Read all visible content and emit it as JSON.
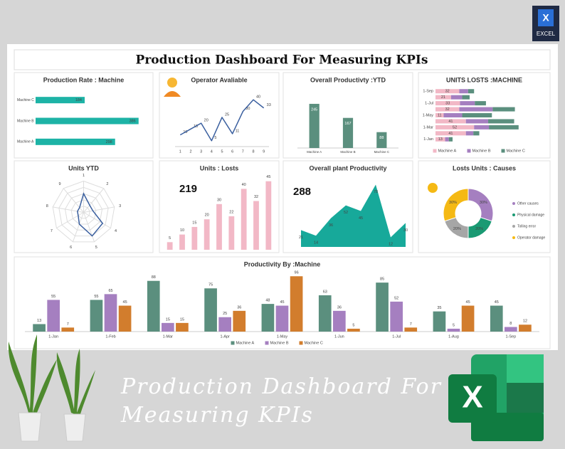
{
  "badge": {
    "letter": "X",
    "label": "EXCEL"
  },
  "dashboard_title": "Production Dashboard For Measuring KPIs",
  "chart_data": [
    {
      "type": "bar",
      "orientation": "horizontal",
      "title": "Production Rate : Machine",
      "categories": [
        "Machine C",
        "Machine B",
        "Machine A"
      ],
      "values": [
        184,
        386,
        298
      ],
      "color": "#1db3a6",
      "xlim": [
        0,
        400
      ]
    },
    {
      "type": "line",
      "title": "Operator Avaliable",
      "x": [
        1,
        2,
        3,
        4,
        5,
        6,
        7,
        8,
        9
      ],
      "values": [
        10,
        15,
        20,
        5,
        25,
        11,
        30,
        40,
        33
      ],
      "color": "#3a5f9f",
      "xlim": [
        0.5,
        9.5
      ],
      "ylim": [
        0,
        45
      ],
      "xticks": [
        1,
        2,
        3,
        4,
        5,
        6,
        7,
        8,
        9
      ]
    },
    {
      "type": "bar",
      "title": "Overall Productivty :YTD",
      "categories": [
        "Machine A",
        "Machine B",
        "Machine C"
      ],
      "values": [
        245,
        167,
        88
      ],
      "color": "#5b8f7e",
      "ylim": [
        0,
        300
      ]
    },
    {
      "type": "bar",
      "orientation": "horizontal",
      "stacked": true,
      "title": "UNITS LOSTS :MACHINE",
      "categories": [
        "1-Sep",
        null,
        "1-Jul",
        null,
        "1-May",
        null,
        "1-Mar",
        null,
        "1-Jan"
      ],
      "series": [
        {
          "name": "Machine A",
          "color": "#f2b8c6",
          "values": [
            32,
            21,
            33,
            32,
            11,
            41,
            52,
            41,
            13
          ]
        },
        {
          "name": "Machine B",
          "color": "#a57fc0",
          "values": [
            12,
            15,
            20,
            45,
            25,
            30,
            20,
            10,
            5
          ]
        },
        {
          "name": "Machine C",
          "color": "#5b8f7e",
          "values": [
            8,
            10,
            15,
            30,
            40,
            35,
            40,
            8,
            5
          ]
        }
      ],
      "xlim": [
        0,
        140
      ]
    },
    {
      "type": "radar",
      "title": "Units YTD",
      "categories": [
        "1",
        "2",
        "3",
        "4",
        "5",
        "6",
        "7",
        "8",
        "9"
      ],
      "values": [
        6,
        3,
        3,
        7,
        8,
        4,
        2,
        2,
        2
      ],
      "rlim": [
        0,
        10
      ],
      "color": "#3a5f9f"
    },
    {
      "type": "bar",
      "title": "Units : Losts",
      "total": 219,
      "values": [
        5,
        10,
        15,
        20,
        30,
        22,
        40,
        32,
        45
      ],
      "color": "#f2b8c6",
      "ylim": [
        0,
        50
      ]
    },
    {
      "type": "area",
      "title": "Overall plant Productivity",
      "total": 288,
      "values": [
        21,
        14,
        36,
        52,
        45,
        78,
        12,
        30
      ],
      "color": "#17a99a",
      "ylim": [
        0,
        90
      ]
    },
    {
      "type": "pie",
      "donut": true,
      "title": "Losts Units : Causes",
      "categories": [
        "Other causes",
        "Physical damage",
        "Tolling error",
        "Operator damage"
      ],
      "values": [
        30,
        20,
        20,
        30
      ],
      "value_labels": [
        "30%",
        "20%",
        "20%",
        "30%"
      ],
      "colors": [
        "#a57fc0",
        "#1a9a73",
        "#a6a6a6",
        "#f5b914"
      ]
    },
    {
      "type": "bar",
      "title": "Productivity By :Machine",
      "categories": [
        "1-Jan",
        "1-Feb",
        "1-Mar",
        "1-Apr",
        "1-May",
        "1-Jun",
        "1-Jul",
        "1-Aug",
        "1-Sep"
      ],
      "series": [
        {
          "name": "Machine A",
          "color": "#5b8f7e",
          "values": [
            13,
            55,
            88,
            75,
            48,
            63,
            85,
            35,
            45
          ]
        },
        {
          "name": "Machine B",
          "color": "#a57fc0",
          "values": [
            55,
            65,
            15,
            25,
            45,
            36,
            52,
            5,
            8
          ]
        },
        {
          "name": "Machine C",
          "color": "#d27d2d",
          "values": [
            7,
            45,
            15,
            36,
            96,
            5,
            7,
            45,
            12
          ]
        }
      ],
      "ylim": [
        0,
        100
      ]
    }
  ],
  "banner": {
    "lines": [
      "Production Dashboard For",
      "Measuring KPIs"
    ],
    "logo_letter": "X"
  }
}
